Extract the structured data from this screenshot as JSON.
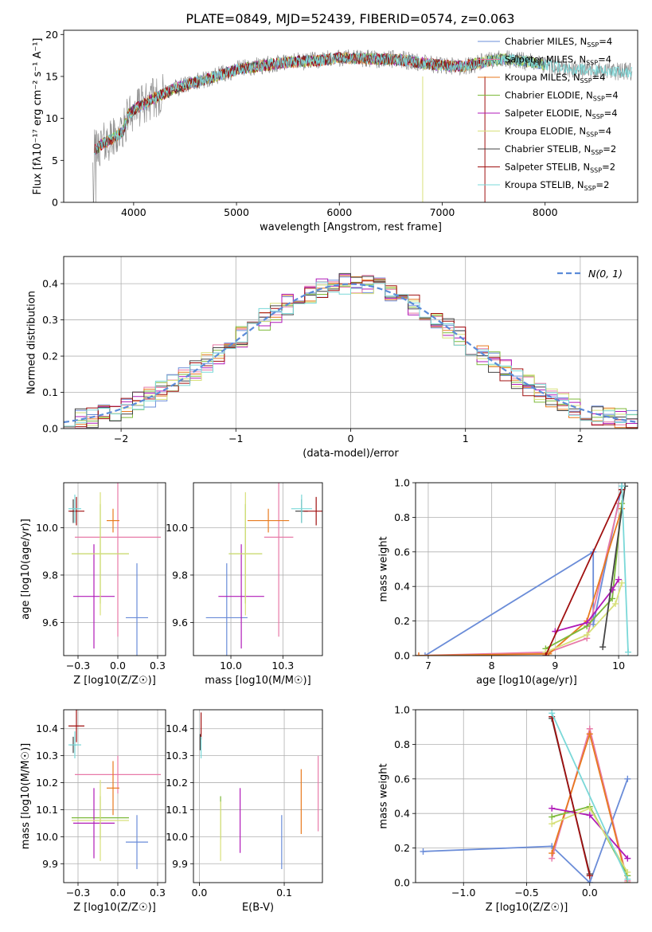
{
  "figure_title": "PLATE=0849, MJD=52439, FIBERID=0574, z=0.063",
  "colors": {
    "Chabrier MILES": "#6a8cd8",
    "Salpeter MILES": "#e87aa8",
    "Kroupa MILES": "#e87a1e",
    "Chabrier ELODIE": "#7dba3a",
    "Salpeter ELODIE": "#b01ab8",
    "Kroupa ELODIE": "#d8e07a",
    "Chabrier STELIB": "#444444",
    "Salpeter STELIB": "#a01010",
    "Kroupa STELIB": "#7ad8d8",
    "data": "#808080",
    "normal": "#5b8bd8",
    "grid": "#b0b0b0"
  },
  "chart_data": [
    {
      "id": "spectrum",
      "type": "line",
      "xlabel": "wavelength [Angstrom, rest frame]",
      "ylabel": "Flux [fλ10⁻¹⁷ erg cm⁻² s⁻¹ A⁻¹]",
      "xlim": [
        3320,
        8900
      ],
      "ylim": [
        0,
        20.5
      ],
      "xticks": [
        4000,
        5000,
        6000,
        7000,
        8000
      ],
      "yticks": [
        0,
        5,
        10,
        15,
        20
      ],
      "grid": false,
      "legend_position": "right",
      "legend": [
        {
          "name": "Chabrier MILES",
          "nssp": "4"
        },
        {
          "name": "Salpeter MILES",
          "nssp": "4"
        },
        {
          "name": "Kroupa MILES",
          "nssp": "4"
        },
        {
          "name": "Chabrier ELODIE",
          "nssp": "4"
        },
        {
          "name": "Salpeter ELODIE",
          "nssp": "4"
        },
        {
          "name": "Kroupa ELODIE",
          "nssp": "4"
        },
        {
          "name": "Chabrier STELIB",
          "nssp": "2"
        },
        {
          "name": "Salpeter STELIB",
          "nssp": "2"
        },
        {
          "name": "Kroupa STELIB",
          "nssp": "2"
        }
      ],
      "continuum": [
        [
          3600,
          6.0
        ],
        [
          3700,
          7.0
        ],
        [
          3800,
          7.6
        ],
        [
          3900,
          8.5
        ],
        [
          3950,
          10.5
        ],
        [
          4000,
          11.0
        ],
        [
          4200,
          12.4
        ],
        [
          4400,
          13.6
        ],
        [
          4600,
          14.3
        ],
        [
          4800,
          15.0
        ],
        [
          5000,
          15.8
        ],
        [
          5200,
          16.2
        ],
        [
          5500,
          16.7
        ],
        [
          5800,
          16.9
        ],
        [
          6000,
          17.2
        ],
        [
          6300,
          17.1
        ],
        [
          6600,
          17.0
        ],
        [
          6800,
          16.6
        ],
        [
          7000,
          16.3
        ],
        [
          7200,
          16.2
        ],
        [
          7400,
          16.7
        ],
        [
          7600,
          17.1
        ],
        [
          7800,
          16.8
        ],
        [
          8000,
          16.4
        ],
        [
          8200,
          16.0
        ],
        [
          8500,
          15.7
        ],
        [
          8850,
          15.5
        ]
      ],
      "model_end": [
        8000,
        7600,
        7400,
        8000,
        7400,
        8000,
        8000,
        7400,
        8850
      ]
    },
    {
      "id": "residuals",
      "type": "histogram",
      "xlabel": "(data-model)/error",
      "ylabel": "Normed distribution",
      "xlim": [
        -2.5,
        2.5
      ],
      "ylim": [
        0,
        0.475
      ],
      "xticks": [
        -2,
        -1,
        0,
        1,
        2
      ],
      "yticks": [
        0.0,
        0.1,
        0.2,
        0.3,
        0.4
      ],
      "grid": true,
      "legend_position": "top-right",
      "normal_label": "N(0, 1)",
      "bin_width": 0.1
    },
    {
      "id": "age_vs_Z",
      "type": "errorbar",
      "xlabel": "Z [log10(Z/Z☉)]",
      "ylabel": "age  [log10(age/yr)]",
      "xlim": [
        -0.34,
        0.3
      ],
      "ylim": [
        9.46,
        10.19
      ],
      "xticks": [
        -0.25,
        0.0,
        0.25
      ],
      "yticks": [
        9.6,
        9.8,
        10.0
      ],
      "grid": true,
      "points": [
        {
          "model": "Chabrier MILES",
          "x": 0.12,
          "xerr": 0.07,
          "y": 9.62,
          "yerr": 0.23
        },
        {
          "model": "Salpeter MILES",
          "x": 0.0,
          "xerr": 0.27,
          "y": 9.96,
          "yerr": 0.42
        },
        {
          "model": "Kroupa MILES",
          "x": -0.03,
          "xerr": 0.04,
          "y": 10.03,
          "yerr": 0.05
        },
        {
          "model": "Chabrier ELODIE",
          "x": -0.11,
          "xerr": 0.18,
          "y": 9.89,
          "yerr": 0.21
        },
        {
          "model": "Salpeter ELODIE",
          "x": -0.15,
          "xerr": 0.13,
          "y": 9.71,
          "yerr": 0.22
        },
        {
          "model": "Kroupa ELODIE",
          "x": -0.11,
          "xerr": 0.18,
          "y": 9.89,
          "yerr": 0.26
        },
        {
          "model": "Chabrier STELIB",
          "x": -0.28,
          "xerr": 0.02,
          "y": 10.07,
          "yerr": 0.05
        },
        {
          "model": "Salpeter STELIB",
          "x": -0.26,
          "xerr": 0.05,
          "y": 10.07,
          "yerr": 0.06
        },
        {
          "model": "Kroupa STELIB",
          "x": -0.27,
          "xerr": 0.04,
          "y": 10.08,
          "yerr": 0.06
        }
      ]
    },
    {
      "id": "age_vs_mass",
      "type": "errorbar",
      "xlabel": "mass [log10(M/M☉)]",
      "ylabel": "",
      "xlim": [
        9.82,
        10.44
      ],
      "ylim": [
        9.46,
        10.19
      ],
      "xticks": [
        10.0,
        10.25
      ],
      "yticks": [
        9.6,
        9.8,
        10.0
      ],
      "grid": true,
      "points": [
        {
          "model": "Chabrier MILES",
          "x": 9.98,
          "xerr": 0.1,
          "y": 9.62,
          "yerr": 0.23
        },
        {
          "model": "Salpeter MILES",
          "x": 10.23,
          "xerr": 0.07,
          "y": 9.96,
          "yerr": 0.42
        },
        {
          "model": "Kroupa MILES",
          "x": 10.18,
          "xerr": 0.1,
          "y": 10.03,
          "yerr": 0.05
        },
        {
          "model": "Chabrier ELODIE",
          "x": 10.07,
          "xerr": 0.08,
          "y": 9.89,
          "yerr": 0.21
        },
        {
          "model": "Salpeter ELODIE",
          "x": 10.05,
          "xerr": 0.11,
          "y": 9.71,
          "yerr": 0.22
        },
        {
          "model": "Kroupa ELODIE",
          "x": 10.07,
          "xerr": 0.08,
          "y": 9.89,
          "yerr": 0.26
        },
        {
          "model": "Chabrier STELIB",
          "x": 10.34,
          "xerr": 0.03,
          "y": 10.07,
          "yerr": 0.05
        },
        {
          "model": "Salpeter STELIB",
          "x": 10.41,
          "xerr": 0.06,
          "y": 10.07,
          "yerr": 0.06
        },
        {
          "model": "Kroupa STELIB",
          "x": 10.34,
          "xerr": 0.05,
          "y": 10.08,
          "yerr": 0.06
        }
      ]
    },
    {
      "id": "mass_weight_vs_age",
      "type": "line",
      "xlabel": "age  [log10(age/yr)]",
      "ylabel": "mass weight",
      "xlim": [
        6.8,
        10.3
      ],
      "ylim": [
        0,
        1.0
      ],
      "xticks": [
        7,
        8,
        9,
        10
      ],
      "yticks": [
        0.0,
        0.2,
        0.4,
        0.6,
        0.8,
        1.0
      ],
      "grid": true,
      "series": [
        {
          "model": "Chabrier MILES",
          "x": [
            6.95,
            9.6,
            9.6,
            10.05
          ],
          "y": [
            0.0,
            0.6,
            0.18,
            0.98
          ]
        },
        {
          "model": "Salpeter MILES",
          "x": [
            6.85,
            8.9,
            9.5,
            10.0
          ],
          "y": [
            0.0,
            0.02,
            0.1,
            0.88
          ]
        },
        {
          "model": "Kroupa MILES",
          "x": [
            6.85,
            8.9,
            9.5,
            10.05
          ],
          "y": [
            0.0,
            0.01,
            0.2,
            0.85
          ]
        },
        {
          "model": "Chabrier ELODIE",
          "x": [
            8.85,
            9.5,
            9.9,
            10.05
          ],
          "y": [
            0.04,
            0.17,
            0.33,
            0.88
          ]
        },
        {
          "model": "Salpeter ELODIE",
          "x": [
            9.0,
            9.5,
            9.9,
            10.0
          ],
          "y": [
            0.14,
            0.19,
            0.38,
            0.44
          ]
        },
        {
          "model": "Kroupa ELODIE",
          "x": [
            8.85,
            9.5,
            9.95,
            10.05
          ],
          "y": [
            0.02,
            0.12,
            0.3,
            0.42
          ]
        },
        {
          "model": "Chabrier STELIB",
          "x": [
            9.75,
            10.1
          ],
          "y": [
            0.05,
            0.98
          ]
        },
        {
          "model": "Salpeter STELIB",
          "x": [
            8.85,
            10.05
          ],
          "y": [
            0.0,
            0.96
          ]
        },
        {
          "model": "Kroupa STELIB",
          "x": [
            10.05,
            10.15
          ],
          "y": [
            0.98,
            0.02
          ]
        }
      ]
    },
    {
      "id": "mass_vs_Z",
      "type": "errorbar",
      "xlabel": "Z [log10(Z/Z☉)]",
      "ylabel": "mass [log10(M/M☉)]",
      "xlim": [
        -0.34,
        0.3
      ],
      "ylim": [
        9.83,
        10.47
      ],
      "xticks": [
        -0.25,
        0.0,
        0.25
      ],
      "yticks": [
        9.9,
        10.0,
        10.1,
        10.2,
        10.3,
        10.4
      ],
      "grid": true,
      "points": [
        {
          "model": "Chabrier MILES",
          "x": 0.12,
          "xerr": 0.07,
          "y": 9.98,
          "yerr": 0.1
        },
        {
          "model": "Salpeter MILES",
          "x": 0.0,
          "xerr": 0.27,
          "y": 10.23,
          "yerr": 0.07
        },
        {
          "model": "Kroupa MILES",
          "x": -0.03,
          "xerr": 0.04,
          "y": 10.18,
          "yerr": 0.1
        },
        {
          "model": "Chabrier ELODIE",
          "x": -0.11,
          "xerr": 0.18,
          "y": 10.07,
          "yerr": 0.08
        },
        {
          "model": "Salpeter ELODIE",
          "x": -0.15,
          "xerr": 0.13,
          "y": 10.05,
          "yerr": 0.13
        },
        {
          "model": "Kroupa ELODIE",
          "x": -0.11,
          "xerr": 0.18,
          "y": 10.06,
          "yerr": 0.15
        },
        {
          "model": "Chabrier STELIB",
          "x": -0.28,
          "xerr": 0.02,
          "y": 10.34,
          "yerr": 0.03
        },
        {
          "model": "Salpeter STELIB",
          "x": -0.26,
          "xerr": 0.05,
          "y": 10.41,
          "yerr": 0.06
        },
        {
          "model": "Kroupa STELIB",
          "x": -0.27,
          "xerr": 0.04,
          "y": 10.34,
          "yerr": 0.05
        }
      ]
    },
    {
      "id": "mass_vs_EBV",
      "type": "errorbar",
      "xlabel": "E(B-V)",
      "ylabel": "",
      "xlim": [
        -0.007,
        0.145
      ],
      "ylim": [
        9.83,
        10.47
      ],
      "xticks": [
        0.0,
        0.1
      ],
      "yticks": [
        9.9,
        10.0,
        10.1,
        10.2,
        10.3,
        10.4
      ],
      "grid": true,
      "points": [
        {
          "model": "Chabrier MILES",
          "x": 0.097,
          "y": 9.98,
          "yerr": 0.1
        },
        {
          "model": "Salpeter MILES",
          "x": 0.14,
          "y": 10.16,
          "yerr": 0.14
        },
        {
          "model": "Kroupa MILES",
          "x": 0.12,
          "y": 10.13,
          "yerr": 0.12
        },
        {
          "model": "Chabrier ELODIE",
          "x": 0.025,
          "y": 10.07,
          "yerr": 0.08
        },
        {
          "model": "Salpeter ELODIE",
          "x": 0.048,
          "y": 10.06,
          "yerr": 0.12
        },
        {
          "model": "Kroupa ELODIE",
          "x": 0.025,
          "y": 10.02,
          "yerr": 0.11
        },
        {
          "model": "Chabrier STELIB",
          "x": 0.001,
          "y": 10.35,
          "yerr": 0.03
        },
        {
          "model": "Salpeter STELIB",
          "x": 0.002,
          "y": 10.41,
          "yerr": 0.05
        },
        {
          "model": "Kroupa STELIB",
          "x": 0.002,
          "y": 10.33,
          "yerr": 0.04
        }
      ]
    },
    {
      "id": "mass_weight_vs_Z",
      "type": "line",
      "xlabel": "Z [log10(Z/Z☉)]",
      "ylabel": "mass weight",
      "xlim": [
        -1.38,
        0.38
      ],
      "ylim": [
        0,
        1.0
      ],
      "xticks": [
        -1.0,
        -0.5,
        0.0
      ],
      "yticks": [
        0.0,
        0.2,
        0.4,
        0.6,
        0.8,
        1.0
      ],
      "grid": true,
      "series": [
        {
          "model": "Chabrier MILES",
          "x": [
            -1.32,
            -0.3,
            0.0,
            0.3
          ],
          "y": [
            0.18,
            0.21,
            0.0,
            0.6
          ]
        },
        {
          "model": "Salpeter MILES",
          "x": [
            -0.3,
            0.0,
            0.3
          ],
          "y": [
            0.14,
            0.89,
            0.01
          ]
        },
        {
          "model": "Kroupa MILES",
          "x": [
            -0.3,
            0.0,
            0.3
          ],
          "y": [
            0.17,
            0.86,
            0.0
          ]
        },
        {
          "model": "Chabrier ELODIE",
          "x": [
            -0.3,
            0.0,
            0.3
          ],
          "y": [
            0.38,
            0.44,
            0.04
          ]
        },
        {
          "model": "Salpeter ELODIE",
          "x": [
            -0.3,
            0.0,
            0.3
          ],
          "y": [
            0.43,
            0.39,
            0.14
          ]
        },
        {
          "model": "Kroupa ELODIE",
          "x": [
            -0.3,
            0.0,
            0.3
          ],
          "y": [
            0.34,
            0.43,
            0.06
          ]
        },
        {
          "model": "Chabrier STELIB",
          "x": [
            -0.3,
            0.0
          ],
          "y": [
            0.95,
            0.05
          ]
        },
        {
          "model": "Salpeter STELIB",
          "x": [
            -0.3,
            0.0
          ],
          "y": [
            0.96,
            0.04
          ]
        },
        {
          "model": "Kroupa STELIB",
          "x": [
            -0.3,
            0.3
          ],
          "y": [
            0.98,
            0.02
          ]
        }
      ]
    }
  ]
}
